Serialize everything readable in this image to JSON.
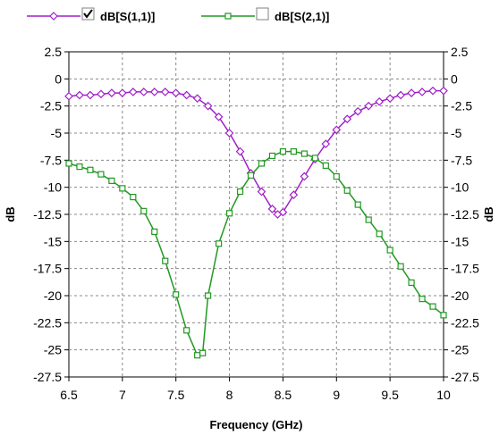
{
  "chart_data": {
    "type": "line",
    "xlabel": "Frequency (GHz)",
    "ylabel": "dB",
    "xlim": [
      6.5,
      10
    ],
    "ylim": [
      -27.5,
      2.5
    ],
    "x_ticks": [
      "6.5",
      "7",
      "7.5",
      "8",
      "8.5",
      "9",
      "9.5",
      "10"
    ],
    "y_ticks": [
      "2.5",
      "0",
      "-2.5",
      "-5",
      "-7.5",
      "-10",
      "-12.5",
      "-15",
      "-17.5",
      "-20",
      "-22.5",
      "-25",
      "-27.5"
    ],
    "grid": true,
    "legend_position": "top-left",
    "series": [
      {
        "name": "dB[S(1,1)]",
        "checked": true,
        "color": "#a020c8",
        "marker": "diamond",
        "x": [
          6.5,
          6.6,
          6.7,
          6.8,
          6.9,
          7.0,
          7.1,
          7.2,
          7.3,
          7.4,
          7.5,
          7.6,
          7.7,
          7.8,
          7.9,
          8.0,
          8.1,
          8.2,
          8.3,
          8.4,
          8.45,
          8.5,
          8.6,
          8.7,
          8.8,
          8.9,
          9.0,
          9.1,
          9.2,
          9.3,
          9.4,
          9.5,
          9.6,
          9.7,
          9.8,
          9.9,
          10.0
        ],
        "y": [
          -1.6,
          -1.5,
          -1.5,
          -1.4,
          -1.3,
          -1.3,
          -1.2,
          -1.2,
          -1.2,
          -1.2,
          -1.3,
          -1.5,
          -1.8,
          -2.5,
          -3.5,
          -5.0,
          -6.7,
          -8.7,
          -10.4,
          -12.0,
          -12.5,
          -12.3,
          -10.7,
          -9.0,
          -7.4,
          -6.0,
          -4.7,
          -3.7,
          -3.0,
          -2.5,
          -2.1,
          -1.8,
          -1.5,
          -1.3,
          -1.2,
          -1.1,
          -1.1
        ]
      },
      {
        "name": "dB[S(2,1)]",
        "checked": false,
        "color": "#229922",
        "marker": "square",
        "x": [
          6.5,
          6.6,
          6.7,
          6.8,
          6.9,
          7.0,
          7.1,
          7.2,
          7.3,
          7.4,
          7.5,
          7.6,
          7.7,
          7.75,
          7.8,
          7.9,
          8.0,
          8.1,
          8.2,
          8.3,
          8.4,
          8.5,
          8.6,
          8.7,
          8.8,
          8.9,
          9.0,
          9.1,
          9.2,
          9.3,
          9.4,
          9.5,
          9.6,
          9.7,
          9.8,
          9.9,
          10.0
        ],
        "y": [
          -7.8,
          -8.1,
          -8.4,
          -8.8,
          -9.4,
          -10.1,
          -10.9,
          -12.2,
          -14.1,
          -16.8,
          -19.9,
          -23.2,
          -25.5,
          -25.3,
          -20.0,
          -15.2,
          -12.4,
          -10.4,
          -8.9,
          -7.8,
          -7.1,
          -6.7,
          -6.7,
          -6.9,
          -7.3,
          -8.0,
          -9.0,
          -10.3,
          -11.6,
          -13.0,
          -14.3,
          -15.8,
          -17.3,
          -18.8,
          -20.3,
          -21.0,
          -21.8
        ]
      }
    ]
  }
}
